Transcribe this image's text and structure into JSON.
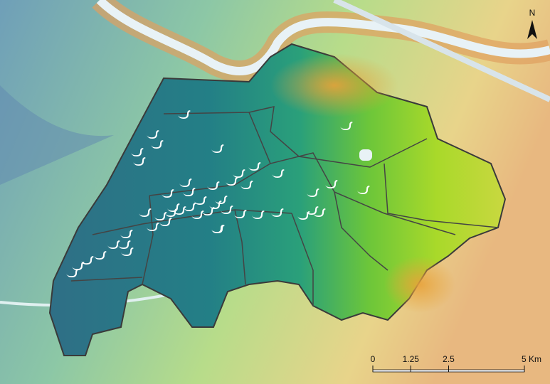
{
  "north_arrow": "N",
  "scale_bar": {
    "ticks": [
      0,
      1.25,
      2.5,
      {
        "value": 5,
        "label": "5 Km"
      }
    ]
  }
}
